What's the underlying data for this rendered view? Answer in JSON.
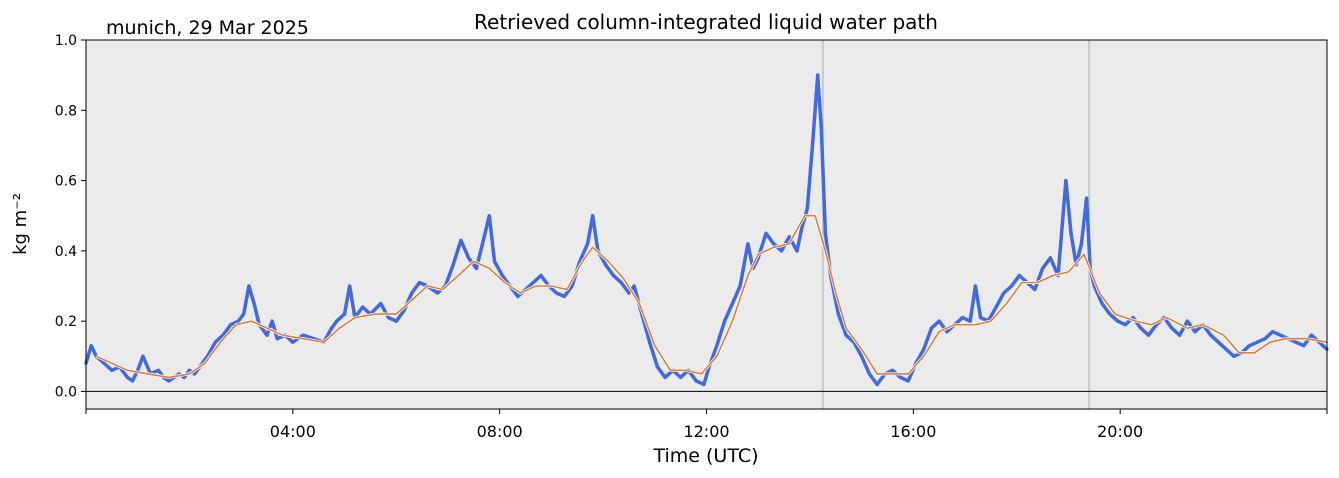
{
  "chart_data": {
    "type": "line",
    "title": "Retrieved column-integrated liquid water path",
    "subtitle": "munich, 29 Mar 2025",
    "xlabel": "Time (UTC)",
    "ylabel": "kg m⁻²",
    "xlim_hours": [
      0,
      24
    ],
    "ylim": [
      -0.05,
      1.0
    ],
    "x_ticks": [
      {
        "hour": 4,
        "label": "04:00"
      },
      {
        "hour": 8,
        "label": "08:00"
      },
      {
        "hour": 12,
        "label": "12:00"
      },
      {
        "hour": 16,
        "label": "16:00"
      },
      {
        "hour": 20,
        "label": "20:00"
      }
    ],
    "y_ticks": [
      {
        "value": 0.0,
        "label": "0.0"
      },
      {
        "value": 0.2,
        "label": "0.2"
      },
      {
        "value": 0.4,
        "label": "0.4"
      },
      {
        "value": 0.6,
        "label": "0.6"
      },
      {
        "value": 0.8,
        "label": "0.8"
      },
      {
        "value": 1.0,
        "label": "1.0"
      }
    ],
    "zero_line": 0.0,
    "gray_vlines_hours": [
      14.25,
      19.4
    ],
    "grid": false,
    "background_color": "#ebebeb",
    "series": [
      {
        "kind": "raw",
        "color": "#4169e1",
        "points": [
          [
            0.0,
            0.08
          ],
          [
            0.1,
            0.13
          ],
          [
            0.2,
            0.1
          ],
          [
            0.35,
            0.08
          ],
          [
            0.5,
            0.06
          ],
          [
            0.65,
            0.07
          ],
          [
            0.8,
            0.04
          ],
          [
            0.9,
            0.03
          ],
          [
            1.0,
            0.06
          ],
          [
            1.1,
            0.1
          ],
          [
            1.25,
            0.05
          ],
          [
            1.4,
            0.06
          ],
          [
            1.5,
            0.04
          ],
          [
            1.6,
            0.03
          ],
          [
            1.7,
            0.04
          ],
          [
            1.8,
            0.05
          ],
          [
            1.9,
            0.04
          ],
          [
            2.0,
            0.06
          ],
          [
            2.1,
            0.05
          ],
          [
            2.2,
            0.07
          ],
          [
            2.35,
            0.1
          ],
          [
            2.5,
            0.14
          ],
          [
            2.65,
            0.16
          ],
          [
            2.8,
            0.19
          ],
          [
            2.95,
            0.2
          ],
          [
            3.05,
            0.22
          ],
          [
            3.15,
            0.3
          ],
          [
            3.25,
            0.25
          ],
          [
            3.35,
            0.19
          ],
          [
            3.5,
            0.16
          ],
          [
            3.6,
            0.2
          ],
          [
            3.7,
            0.15
          ],
          [
            3.85,
            0.16
          ],
          [
            4.0,
            0.14
          ],
          [
            4.2,
            0.16
          ],
          [
            4.4,
            0.15
          ],
          [
            4.6,
            0.14
          ],
          [
            4.75,
            0.18
          ],
          [
            4.85,
            0.2
          ],
          [
            5.0,
            0.22
          ],
          [
            5.1,
            0.3
          ],
          [
            5.2,
            0.21
          ],
          [
            5.35,
            0.24
          ],
          [
            5.5,
            0.22
          ],
          [
            5.7,
            0.25
          ],
          [
            5.85,
            0.21
          ],
          [
            6.0,
            0.2
          ],
          [
            6.15,
            0.23
          ],
          [
            6.3,
            0.28
          ],
          [
            6.45,
            0.31
          ],
          [
            6.6,
            0.3
          ],
          [
            6.8,
            0.28
          ],
          [
            6.95,
            0.3
          ],
          [
            7.1,
            0.36
          ],
          [
            7.25,
            0.43
          ],
          [
            7.4,
            0.38
          ],
          [
            7.55,
            0.35
          ],
          [
            7.7,
            0.44
          ],
          [
            7.8,
            0.5
          ],
          [
            7.9,
            0.37
          ],
          [
            8.05,
            0.33
          ],
          [
            8.2,
            0.3
          ],
          [
            8.35,
            0.27
          ],
          [
            8.5,
            0.29
          ],
          [
            8.65,
            0.31
          ],
          [
            8.8,
            0.33
          ],
          [
            8.95,
            0.3
          ],
          [
            9.1,
            0.28
          ],
          [
            9.25,
            0.27
          ],
          [
            9.4,
            0.3
          ],
          [
            9.55,
            0.37
          ],
          [
            9.7,
            0.42
          ],
          [
            9.8,
            0.5
          ],
          [
            9.9,
            0.4
          ],
          [
            10.05,
            0.36
          ],
          [
            10.2,
            0.33
          ],
          [
            10.35,
            0.31
          ],
          [
            10.5,
            0.28
          ],
          [
            10.6,
            0.3
          ],
          [
            10.75,
            0.22
          ],
          [
            10.9,
            0.14
          ],
          [
            11.05,
            0.07
          ],
          [
            11.2,
            0.04
          ],
          [
            11.35,
            0.06
          ],
          [
            11.5,
            0.04
          ],
          [
            11.65,
            0.06
          ],
          [
            11.8,
            0.03
          ],
          [
            11.95,
            0.02
          ],
          [
            12.05,
            0.07
          ],
          [
            12.2,
            0.13
          ],
          [
            12.35,
            0.2
          ],
          [
            12.5,
            0.25
          ],
          [
            12.65,
            0.3
          ],
          [
            12.8,
            0.42
          ],
          [
            12.9,
            0.35
          ],
          [
            13.0,
            0.38
          ],
          [
            13.15,
            0.45
          ],
          [
            13.3,
            0.42
          ],
          [
            13.45,
            0.4
          ],
          [
            13.6,
            0.44
          ],
          [
            13.75,
            0.4
          ],
          [
            13.85,
            0.47
          ],
          [
            13.95,
            0.52
          ],
          [
            14.05,
            0.7
          ],
          [
            14.15,
            0.9
          ],
          [
            14.22,
            0.75
          ],
          [
            14.3,
            0.45
          ],
          [
            14.4,
            0.33
          ],
          [
            14.55,
            0.22
          ],
          [
            14.7,
            0.16
          ],
          [
            14.85,
            0.14
          ],
          [
            15.0,
            0.1
          ],
          [
            15.15,
            0.05
          ],
          [
            15.3,
            0.02
          ],
          [
            15.45,
            0.05
          ],
          [
            15.6,
            0.06
          ],
          [
            15.75,
            0.04
          ],
          [
            15.9,
            0.03
          ],
          [
            16.05,
            0.08
          ],
          [
            16.2,
            0.12
          ],
          [
            16.35,
            0.18
          ],
          [
            16.5,
            0.2
          ],
          [
            16.65,
            0.17
          ],
          [
            16.8,
            0.19
          ],
          [
            16.95,
            0.21
          ],
          [
            17.1,
            0.2
          ],
          [
            17.2,
            0.3
          ],
          [
            17.3,
            0.21
          ],
          [
            17.45,
            0.2
          ],
          [
            17.6,
            0.24
          ],
          [
            17.75,
            0.28
          ],
          [
            17.9,
            0.3
          ],
          [
            18.05,
            0.33
          ],
          [
            18.2,
            0.31
          ],
          [
            18.35,
            0.29
          ],
          [
            18.5,
            0.35
          ],
          [
            18.65,
            0.38
          ],
          [
            18.8,
            0.33
          ],
          [
            18.95,
            0.6
          ],
          [
            19.05,
            0.45
          ],
          [
            19.15,
            0.36
          ],
          [
            19.25,
            0.42
          ],
          [
            19.35,
            0.55
          ],
          [
            19.42,
            0.35
          ],
          [
            19.5,
            0.3
          ],
          [
            19.65,
            0.25
          ],
          [
            19.8,
            0.22
          ],
          [
            19.95,
            0.2
          ],
          [
            20.1,
            0.19
          ],
          [
            20.25,
            0.21
          ],
          [
            20.4,
            0.18
          ],
          [
            20.55,
            0.16
          ],
          [
            20.7,
            0.19
          ],
          [
            20.85,
            0.21
          ],
          [
            21.0,
            0.18
          ],
          [
            21.15,
            0.16
          ],
          [
            21.3,
            0.2
          ],
          [
            21.45,
            0.17
          ],
          [
            21.6,
            0.19
          ],
          [
            21.75,
            0.16
          ],
          [
            21.9,
            0.14
          ],
          [
            22.05,
            0.12
          ],
          [
            22.2,
            0.1
          ],
          [
            22.35,
            0.11
          ],
          [
            22.5,
            0.13
          ],
          [
            22.65,
            0.14
          ],
          [
            22.8,
            0.15
          ],
          [
            22.95,
            0.17
          ],
          [
            23.1,
            0.16
          ],
          [
            23.25,
            0.15
          ],
          [
            23.4,
            0.14
          ],
          [
            23.55,
            0.13
          ],
          [
            23.7,
            0.16
          ],
          [
            23.85,
            0.14
          ],
          [
            24.0,
            0.12
          ]
        ]
      },
      {
        "kind": "smoothed",
        "color": "#e07b39",
        "points": [
          [
            0.2,
            0.1
          ],
          [
            0.5,
            0.08
          ],
          [
            0.8,
            0.06
          ],
          [
            1.2,
            0.05
          ],
          [
            1.6,
            0.04
          ],
          [
            2.0,
            0.05
          ],
          [
            2.3,
            0.08
          ],
          [
            2.6,
            0.14
          ],
          [
            2.9,
            0.19
          ],
          [
            3.2,
            0.2
          ],
          [
            3.5,
            0.18
          ],
          [
            3.8,
            0.16
          ],
          [
            4.2,
            0.15
          ],
          [
            4.6,
            0.14
          ],
          [
            4.9,
            0.18
          ],
          [
            5.2,
            0.21
          ],
          [
            5.6,
            0.22
          ],
          [
            6.0,
            0.22
          ],
          [
            6.3,
            0.26
          ],
          [
            6.6,
            0.3
          ],
          [
            6.9,
            0.29
          ],
          [
            7.2,
            0.33
          ],
          [
            7.5,
            0.37
          ],
          [
            7.8,
            0.35
          ],
          [
            8.1,
            0.31
          ],
          [
            8.4,
            0.28
          ],
          [
            8.7,
            0.3
          ],
          [
            9.0,
            0.3
          ],
          [
            9.3,
            0.29
          ],
          [
            9.6,
            0.37
          ],
          [
            9.8,
            0.41
          ],
          [
            10.1,
            0.37
          ],
          [
            10.4,
            0.32
          ],
          [
            10.7,
            0.25
          ],
          [
            11.0,
            0.13
          ],
          [
            11.3,
            0.06
          ],
          [
            11.6,
            0.06
          ],
          [
            11.9,
            0.05
          ],
          [
            12.2,
            0.1
          ],
          [
            12.5,
            0.2
          ],
          [
            12.8,
            0.33
          ],
          [
            13.0,
            0.39
          ],
          [
            13.3,
            0.41
          ],
          [
            13.6,
            0.42
          ],
          [
            13.9,
            0.5
          ],
          [
            14.1,
            0.5
          ],
          [
            14.3,
            0.4
          ],
          [
            14.5,
            0.28
          ],
          [
            14.7,
            0.18
          ],
          [
            15.0,
            0.12
          ],
          [
            15.3,
            0.05
          ],
          [
            15.6,
            0.05
          ],
          [
            15.9,
            0.05
          ],
          [
            16.2,
            0.1
          ],
          [
            16.5,
            0.17
          ],
          [
            16.8,
            0.19
          ],
          [
            17.2,
            0.19
          ],
          [
            17.5,
            0.2
          ],
          [
            17.8,
            0.25
          ],
          [
            18.1,
            0.31
          ],
          [
            18.4,
            0.31
          ],
          [
            18.7,
            0.33
          ],
          [
            19.0,
            0.34
          ],
          [
            19.3,
            0.39
          ],
          [
            19.6,
            0.28
          ],
          [
            19.9,
            0.22
          ],
          [
            20.3,
            0.2
          ],
          [
            20.6,
            0.19
          ],
          [
            20.9,
            0.21
          ],
          [
            21.3,
            0.18
          ],
          [
            21.6,
            0.19
          ],
          [
            22.0,
            0.16
          ],
          [
            22.3,
            0.11
          ],
          [
            22.6,
            0.11
          ],
          [
            22.9,
            0.14
          ],
          [
            23.2,
            0.15
          ],
          [
            23.6,
            0.15
          ],
          [
            24.0,
            0.14
          ]
        ]
      }
    ]
  }
}
